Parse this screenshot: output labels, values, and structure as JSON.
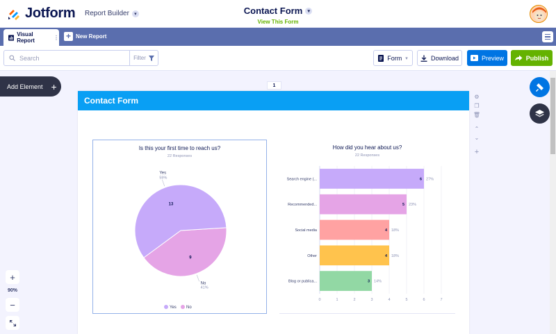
{
  "header": {
    "logo_text": "Jotform",
    "builder_label": "Report Builder",
    "form_title": "Contact Form",
    "view_form_link": "View This Form"
  },
  "tabs": {
    "active_label": "Visual Report",
    "new_report_label": "New Report"
  },
  "toolbar": {
    "search_placeholder": "Search",
    "filter_label": "Filter",
    "form_label": "Form",
    "download_label": "Download",
    "preview_label": "Preview",
    "publish_label": "Publish"
  },
  "left": {
    "add_element_label": "Add Element",
    "zoom_level": "90%"
  },
  "page": {
    "number": "1",
    "header_title": "Contact Form"
  },
  "colors": {
    "header_blue": "#099ff4",
    "tab_bar": "#5a6eae",
    "preview_blue": "#0075e3",
    "publish_green": "#64b200",
    "add_element_dark": "#2f3347"
  },
  "icons": [
    "jotform-logo-icon",
    "chevron-down-icon",
    "avatar-icon",
    "bar-chart-icon",
    "plus-icon",
    "hamburger-menu-icon",
    "search-icon",
    "filter-icon",
    "form-icon",
    "download-icon",
    "preview-icon",
    "publish-arrow-icon",
    "gear-icon",
    "copy-icon",
    "trash-icon",
    "chevron-up-icon",
    "expand-icon",
    "brush-icon",
    "layers-icon"
  ],
  "chart_data": [
    {
      "type": "pie",
      "title": "Is this your first time to reach us?",
      "subtitle": "22 Responses",
      "categories": [
        "Yes",
        "No"
      ],
      "values": [
        13,
        9
      ],
      "percent_labels": [
        "59%",
        "41%"
      ],
      "colors": [
        "#c6aafa",
        "#e5a4e6"
      ],
      "legend": [
        "Yes",
        "No"
      ],
      "legend_position": "bottom"
    },
    {
      "type": "bar",
      "orientation": "horizontal",
      "title": "How did you hear about us?",
      "subtitle": "22 Responses",
      "categories": [
        "Search engine (...",
        "Recommended...",
        "Social media",
        "Other",
        "Blog or publica..."
      ],
      "values": [
        6,
        5,
        4,
        4,
        3
      ],
      "percent_labels": [
        "27%",
        "23%",
        "18%",
        "18%",
        "14%"
      ],
      "colors": [
        "#c6aafa",
        "#e5a4e6",
        "#ffa2a2",
        "#ffc34d",
        "#92d8a4"
      ],
      "xlim": [
        0,
        7
      ],
      "x_ticks": [
        "0",
        "1",
        "2",
        "3",
        "4",
        "5",
        "6",
        "7"
      ],
      "grid": true
    }
  ]
}
